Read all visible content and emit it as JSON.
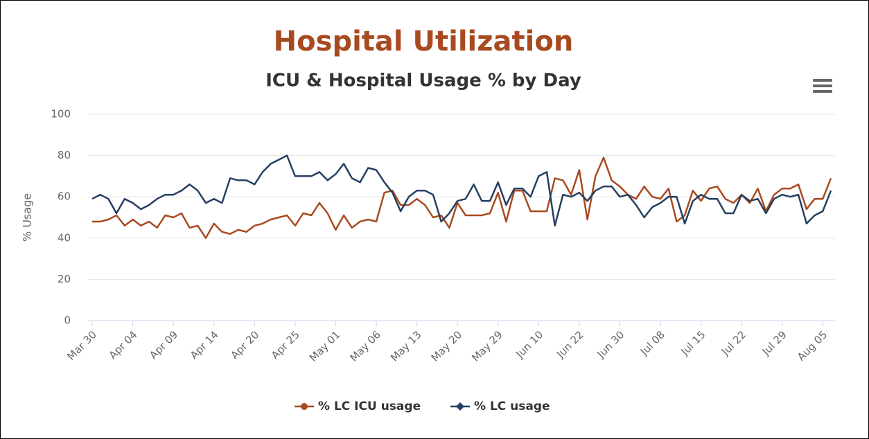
{
  "chart_data": {
    "type": "line",
    "title": "Hospital Utilization",
    "subtitle": "ICU & Hospital Usage % by Day",
    "y_label": "% Usage",
    "categories": [
      "Mar 30",
      null,
      null,
      null,
      null,
      "Apr 04",
      null,
      null,
      null,
      null,
      "Apr 09",
      null,
      null,
      null,
      null,
      "Apr 14",
      null,
      null,
      null,
      null,
      "Apr 20",
      null,
      null,
      null,
      null,
      "Apr 25",
      null,
      null,
      null,
      null,
      "May 01",
      null,
      null,
      null,
      null,
      "May 06",
      null,
      null,
      null,
      null,
      "May 13",
      null,
      null,
      null,
      null,
      "May 20",
      null,
      null,
      null,
      null,
      "May 29",
      null,
      null,
      null,
      null,
      "Jun 10",
      null,
      null,
      null,
      null,
      "Jun 22",
      null,
      null,
      null,
      null,
      "Jun 30",
      null,
      null,
      null,
      null,
      "Jul 08",
      null,
      null,
      null,
      null,
      "Jul 15",
      null,
      null,
      null,
      null,
      "Jul 22",
      null,
      null,
      null,
      null,
      "Jul 29",
      null,
      null,
      null,
      null,
      "Aug 05",
      null
    ],
    "series": [
      {
        "name": "% LC ICU usage",
        "color": "#a84a20",
        "values": [
          48,
          48,
          49,
          51,
          46,
          49,
          46,
          48,
          45,
          51,
          50,
          52,
          45,
          46,
          40,
          47,
          43,
          42,
          44,
          43,
          46,
          47,
          49,
          50,
          51,
          46,
          52,
          51,
          57,
          52,
          44,
          51,
          45,
          48,
          49,
          48,
          62,
          63,
          56,
          56,
          59,
          56,
          50,
          51,
          45,
          57,
          51,
          51,
          51,
          52,
          62,
          48,
          63,
          63,
          53,
          53,
          53,
          69,
          68,
          61,
          73,
          49,
          70,
          79,
          68,
          65,
          61,
          59,
          65,
          60,
          59,
          64,
          48,
          51,
          63,
          58,
          64,
          65,
          59,
          57,
          61,
          57,
          64,
          53,
          61,
          64,
          64,
          66,
          54,
          59,
          59,
          69
        ]
      },
      {
        "name": "% LC usage",
        "color": "#243f60",
        "values": [
          59,
          61,
          59,
          52,
          59,
          57,
          54,
          56,
          59,
          61,
          61,
          63,
          66,
          63,
          57,
          59,
          57,
          69,
          68,
          68,
          66,
          72,
          76,
          78,
          80,
          70,
          70,
          70,
          72,
          68,
          71,
          76,
          69,
          67,
          74,
          73,
          67,
          62,
          53,
          60,
          63,
          63,
          61,
          48,
          52,
          58,
          59,
          66,
          58,
          58,
          67,
          56,
          64,
          64,
          60,
          70,
          72,
          46,
          61,
          60,
          62,
          58,
          63,
          65,
          65,
          60,
          61,
          56,
          50,
          55,
          57,
          60,
          60,
          47,
          58,
          61,
          59,
          59,
          52,
          52,
          61,
          58,
          59,
          52,
          59,
          61,
          60,
          61,
          47,
          51,
          53,
          63
        ]
      }
    ],
    "ylim": [
      0,
      100
    ],
    "yticks": [
      0,
      20,
      40,
      60,
      80,
      100
    ],
    "grid": true,
    "legend": "bottom"
  }
}
